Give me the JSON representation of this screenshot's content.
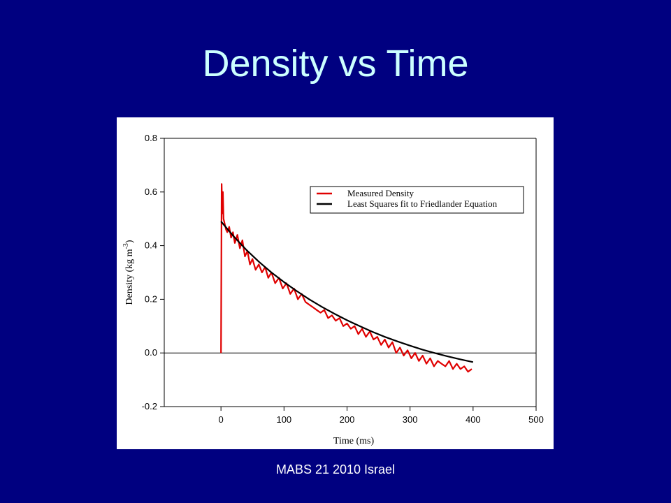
{
  "slide": {
    "title": "Density vs Time",
    "footer": "MABS 21 2010 Israel"
  },
  "chart_data": {
    "type": "line",
    "xlabel": "Time (ms)",
    "ylabel": "Density (kg m-3)",
    "ylabel_main": "Density (kg m",
    "ylabel_sup": "-3",
    "ylabel_close": ")",
    "xlim": [
      -90,
      500
    ],
    "ylim": [
      -0.2,
      0.8
    ],
    "x_ticks": [
      0,
      100,
      200,
      300,
      400,
      500
    ],
    "y_ticks": [
      -0.2,
      0.0,
      0.2,
      0.4,
      0.6,
      0.8
    ],
    "y_tick_labels": [
      "-0.2",
      "0.0",
      "0.2",
      "0.4",
      "0.6",
      "0.8"
    ],
    "legend_position": "top-right",
    "series": [
      {
        "name": "Measured Density",
        "color": "#e00000",
        "style": "noisy",
        "x": [
          0,
          1,
          2,
          3,
          4,
          6,
          8,
          10,
          13,
          16,
          19,
          22,
          26,
          30,
          34,
          38,
          42,
          46,
          50,
          55,
          60,
          65,
          70,
          75,
          80,
          86,
          92,
          98,
          104,
          110,
          116,
          122,
          128,
          134,
          140,
          146,
          152,
          158,
          164,
          170,
          176,
          182,
          188,
          194,
          200,
          206,
          212,
          218,
          224,
          230,
          236,
          242,
          248,
          254,
          260,
          266,
          272,
          278,
          284,
          290,
          296,
          302,
          308,
          314,
          320,
          326,
          332,
          338,
          344,
          350,
          356,
          362,
          368,
          374,
          380,
          386,
          392,
          398
        ],
        "y": [
          0.0,
          0.63,
          0.52,
          0.6,
          0.5,
          0.48,
          0.46,
          0.45,
          0.47,
          0.43,
          0.45,
          0.41,
          0.44,
          0.39,
          0.42,
          0.36,
          0.38,
          0.33,
          0.35,
          0.31,
          0.33,
          0.3,
          0.32,
          0.28,
          0.3,
          0.26,
          0.28,
          0.24,
          0.26,
          0.22,
          0.24,
          0.2,
          0.22,
          0.19,
          0.18,
          0.17,
          0.16,
          0.15,
          0.16,
          0.13,
          0.14,
          0.12,
          0.13,
          0.1,
          0.11,
          0.09,
          0.1,
          0.07,
          0.09,
          0.06,
          0.08,
          0.05,
          0.06,
          0.03,
          0.05,
          0.02,
          0.04,
          0.0,
          0.02,
          -0.01,
          0.01,
          -0.02,
          0.0,
          -0.03,
          -0.01,
          -0.04,
          -0.02,
          -0.05,
          -0.03,
          -0.04,
          -0.05,
          -0.03,
          -0.06,
          -0.04,
          -0.06,
          -0.05,
          -0.07,
          -0.06
        ]
      },
      {
        "name": "Least Squares fit to Friedlander Equation",
        "color": "#000000",
        "style": "smooth",
        "x": [
          0,
          20,
          40,
          60,
          80,
          100,
          120,
          140,
          160,
          180,
          200,
          220,
          240,
          260,
          280,
          300,
          320,
          340,
          360,
          380,
          400
        ],
        "y": [
          0.49,
          0.435,
          0.385,
          0.34,
          0.3,
          0.264,
          0.231,
          0.2,
          0.172,
          0.146,
          0.122,
          0.1,
          0.079,
          0.06,
          0.043,
          0.027,
          0.012,
          -0.001,
          -0.013,
          -0.024,
          -0.034
        ]
      }
    ]
  }
}
